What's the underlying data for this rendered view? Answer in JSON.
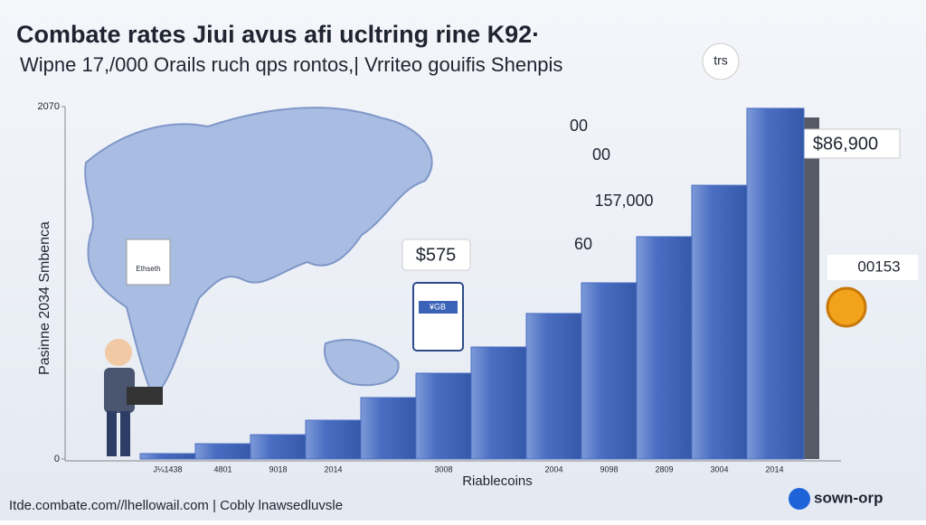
{
  "chart_data": {
    "type": "bar",
    "title": "Combate rates Jiui avus afi ucltring rine K92·",
    "subtitle": "Wipne 17,/000 Orails ruch qps rontos,| Vrriteo gouifis Shenpis",
    "y_label": "Pasinne 2034 Smbenca",
    "x_label": "Riablecoins",
    "categories": [
      "J¼1438",
      "4801",
      "9018",
      "2014",
      null,
      "3008",
      null,
      "2004",
      "9098",
      "2809",
      "3004",
      "2014"
    ],
    "values": [
      32,
      90,
      143,
      228,
      361,
      504,
      658,
      855,
      1035,
      1306,
      1608,
      2060
    ],
    "color": "#4a6ec2",
    "ylim": [
      0,
      2070
    ],
    "yticks": [
      0,
      2070
    ],
    "annotations": [
      "$575",
      "$86,900",
      "00153",
      "00",
      "00",
      "157,000",
      "60",
      "trs",
      "Ethseth",
      "¥GB"
    ],
    "footer": "Itde.combate.com//lhellowail.com  |  Cobly lnawsedluvsle",
    "brand": "sown-orp"
  }
}
